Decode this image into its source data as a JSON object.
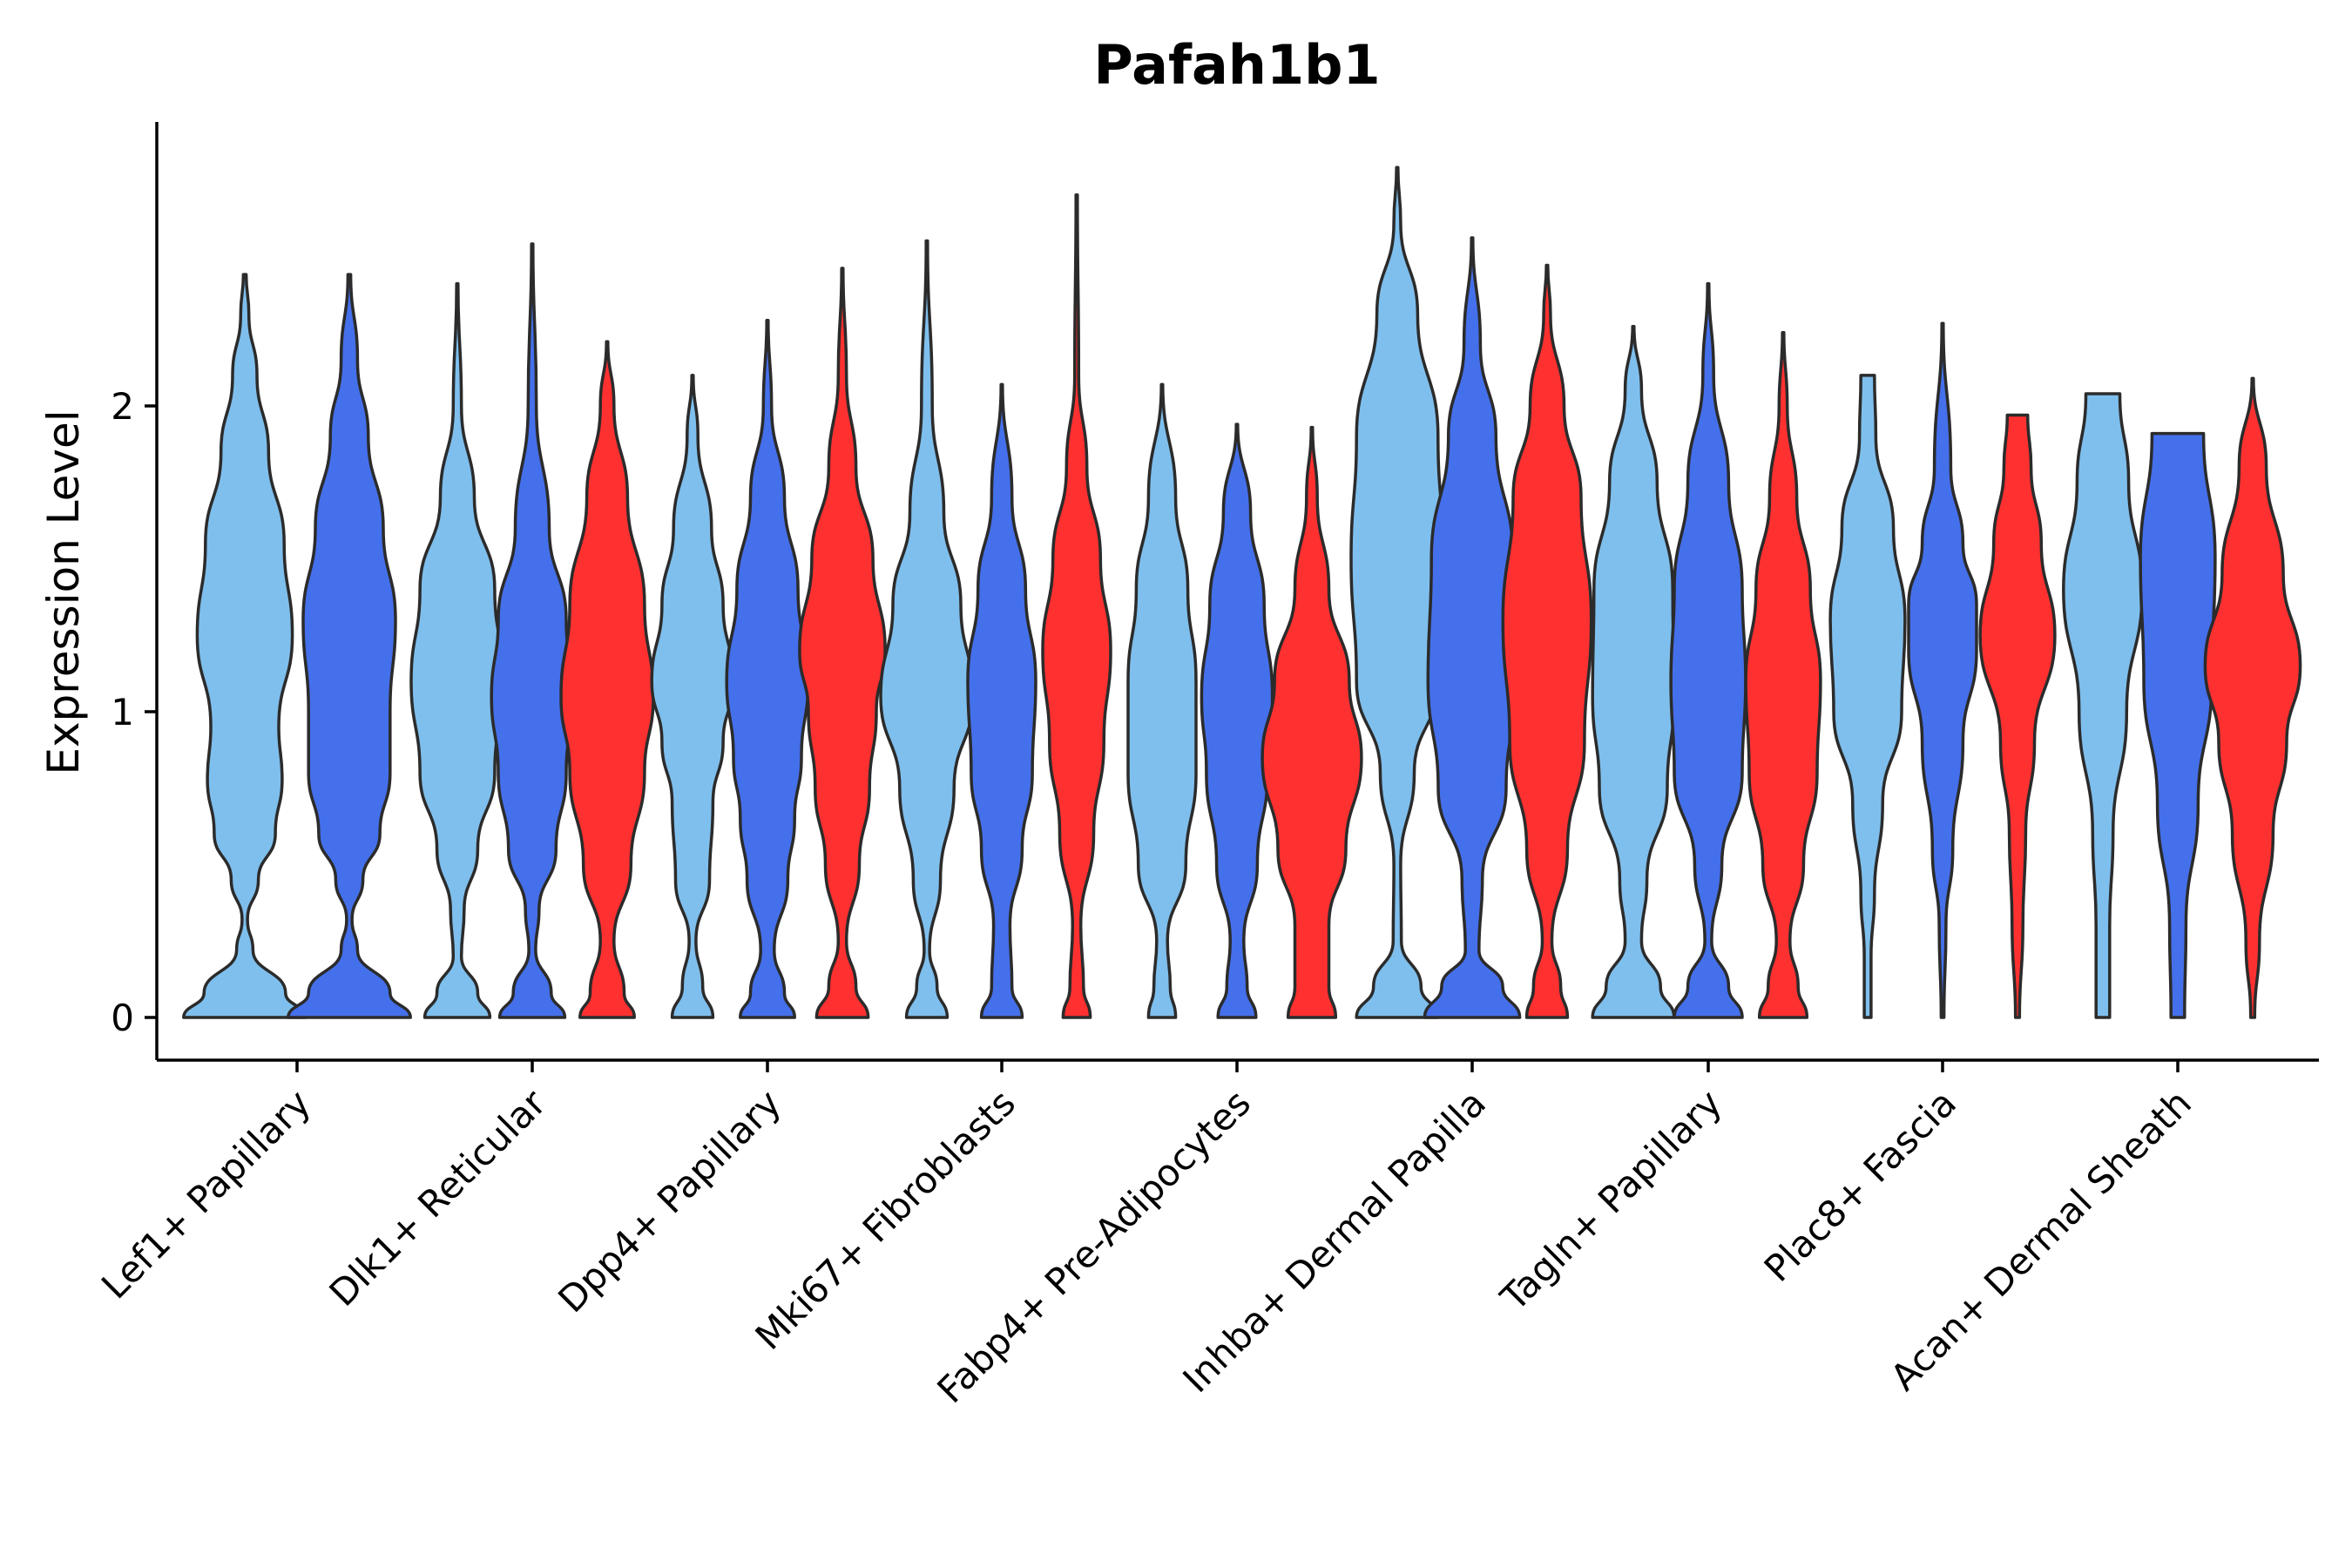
{
  "chart_data": {
    "type": "violin",
    "title": "Pafah1b1",
    "xlabel": "",
    "ylabel": "Expression Level",
    "ylim": [
      -0.14,
      2.93
    ],
    "yticks": [
      0,
      1,
      2
    ],
    "categories": [
      "Lef1+ Papillary",
      "Dlk1+ Reticular",
      "Dpp4+ Papillary",
      "Mki67+ Fibroblasts",
      "Fabp4+ Pre-Adipocytes",
      "Inhba+ Dermal Papilla",
      "Tagln+ Papillary",
      "Plac8+ Fascia",
      "Acan+ Dermal Sheath"
    ],
    "series_colors": [
      "#7fbfed",
      "#4570eb",
      "#ff3030"
    ],
    "violins": [
      {
        "category": 0,
        "color": 0,
        "max": 2.43,
        "profile": [
          [
            0,
            0.9
          ],
          [
            0.08,
            0.6
          ],
          [
            0.22,
            0.12
          ],
          [
            0.32,
            0.04
          ],
          [
            0.45,
            0.2
          ],
          [
            0.6,
            0.45
          ],
          [
            0.78,
            0.55
          ],
          [
            0.95,
            0.5
          ],
          [
            1.25,
            0.7
          ],
          [
            1.55,
            0.58
          ],
          [
            1.85,
            0.35
          ],
          [
            2.1,
            0.18
          ],
          [
            2.3,
            0.06
          ],
          [
            2.43,
            0.02
          ]
        ]
      },
      {
        "category": 0,
        "color": 1,
        "max": 2.43,
        "profile": [
          [
            0,
            0.9
          ],
          [
            0.08,
            0.6
          ],
          [
            0.22,
            0.12
          ],
          [
            0.32,
            0.04
          ],
          [
            0.45,
            0.2
          ],
          [
            0.6,
            0.45
          ],
          [
            0.8,
            0.6
          ],
          [
            1.0,
            0.6
          ],
          [
            1.3,
            0.68
          ],
          [
            1.6,
            0.5
          ],
          [
            1.9,
            0.28
          ],
          [
            2.15,
            0.12
          ],
          [
            2.43,
            0.02
          ]
        ]
      },
      {
        "category": 1,
        "color": 0,
        "max": 2.4,
        "profile": [
          [
            0,
            0.48
          ],
          [
            0.08,
            0.3
          ],
          [
            0.2,
            0.06
          ],
          [
            0.35,
            0.1
          ],
          [
            0.55,
            0.3
          ],
          [
            0.8,
            0.55
          ],
          [
            1.1,
            0.68
          ],
          [
            1.4,
            0.55
          ],
          [
            1.7,
            0.25
          ],
          [
            2.0,
            0.06
          ],
          [
            2.4,
            0.01
          ]
        ]
      },
      {
        "category": 1,
        "color": 1,
        "max": 2.53,
        "profile": [
          [
            0,
            0.48
          ],
          [
            0.08,
            0.28
          ],
          [
            0.22,
            0.05
          ],
          [
            0.35,
            0.1
          ],
          [
            0.55,
            0.35
          ],
          [
            0.8,
            0.5
          ],
          [
            1.05,
            0.6
          ],
          [
            1.3,
            0.5
          ],
          [
            1.6,
            0.25
          ],
          [
            2.0,
            0.06
          ],
          [
            2.53,
            0.01
          ]
        ]
      },
      {
        "category": 1,
        "color": 2,
        "max": 2.21,
        "profile": [
          [
            0,
            0.4
          ],
          [
            0.08,
            0.25
          ],
          [
            0.25,
            0.1
          ],
          [
            0.5,
            0.35
          ],
          [
            0.8,
            0.55
          ],
          [
            1.05,
            0.68
          ],
          [
            1.35,
            0.55
          ],
          [
            1.7,
            0.3
          ],
          [
            2.0,
            0.1
          ],
          [
            2.21,
            0.01
          ]
        ]
      },
      {
        "category": 2,
        "color": 0,
        "max": 2.1,
        "profile": [
          [
            0,
            0.3
          ],
          [
            0.1,
            0.15
          ],
          [
            0.25,
            0.05
          ],
          [
            0.45,
            0.25
          ],
          [
            0.7,
            0.3
          ],
          [
            0.9,
            0.45
          ],
          [
            1.1,
            0.6
          ],
          [
            1.35,
            0.45
          ],
          [
            1.6,
            0.28
          ],
          [
            1.9,
            0.08
          ],
          [
            2.1,
            0.01
          ]
        ]
      },
      {
        "category": 2,
        "color": 1,
        "max": 2.28,
        "profile": [
          [
            0,
            0.4
          ],
          [
            0.08,
            0.25
          ],
          [
            0.22,
            0.1
          ],
          [
            0.45,
            0.3
          ],
          [
            0.65,
            0.4
          ],
          [
            0.85,
            0.5
          ],
          [
            1.1,
            0.6
          ],
          [
            1.4,
            0.45
          ],
          [
            1.7,
            0.25
          ],
          [
            2.0,
            0.06
          ],
          [
            2.28,
            0.01
          ]
        ]
      },
      {
        "category": 2,
        "color": 2,
        "max": 2.45,
        "profile": [
          [
            0,
            0.38
          ],
          [
            0.1,
            0.2
          ],
          [
            0.25,
            0.06
          ],
          [
            0.5,
            0.25
          ],
          [
            0.75,
            0.4
          ],
          [
            1.0,
            0.5
          ],
          [
            1.2,
            0.63
          ],
          [
            1.5,
            0.45
          ],
          [
            1.8,
            0.2
          ],
          [
            2.1,
            0.06
          ],
          [
            2.45,
            0.01
          ]
        ]
      },
      {
        "category": 3,
        "color": 0,
        "max": 2.54,
        "profile": [
          [
            0,
            0.3
          ],
          [
            0.1,
            0.15
          ],
          [
            0.22,
            0.04
          ],
          [
            0.45,
            0.2
          ],
          [
            0.75,
            0.4
          ],
          [
            1.05,
            0.68
          ],
          [
            1.35,
            0.5
          ],
          [
            1.65,
            0.25
          ],
          [
            2.0,
            0.08
          ],
          [
            2.54,
            0.01
          ]
        ]
      },
      {
        "category": 3,
        "color": 1,
        "max": 2.07,
        "profile": [
          [
            0,
            0.3
          ],
          [
            0.1,
            0.15
          ],
          [
            0.3,
            0.12
          ],
          [
            0.55,
            0.3
          ],
          [
            0.8,
            0.45
          ],
          [
            1.1,
            0.5
          ],
          [
            1.4,
            0.35
          ],
          [
            1.7,
            0.15
          ],
          [
            2.07,
            0.01
          ]
        ]
      },
      {
        "category": 3,
        "color": 2,
        "max": 2.69,
        "profile": [
          [
            0,
            0.2
          ],
          [
            0.1,
            0.1
          ],
          [
            0.3,
            0.06
          ],
          [
            0.6,
            0.25
          ],
          [
            0.9,
            0.4
          ],
          [
            1.2,
            0.5
          ],
          [
            1.5,
            0.35
          ],
          [
            1.8,
            0.15
          ],
          [
            2.1,
            0.03
          ],
          [
            2.69,
            0.01
          ]
        ]
      },
      {
        "category": 4,
        "color": 0,
        "max": 2.07,
        "profile": [
          [
            0,
            0.2
          ],
          [
            0.1,
            0.12
          ],
          [
            0.25,
            0.08
          ],
          [
            0.5,
            0.35
          ],
          [
            0.8,
            0.5
          ],
          [
            1.1,
            0.5
          ],
          [
            1.4,
            0.38
          ],
          [
            1.7,
            0.2
          ],
          [
            2.07,
            0.01
          ]
        ]
      },
      {
        "category": 4,
        "color": 1,
        "max": 1.94,
        "profile": [
          [
            0,
            0.28
          ],
          [
            0.1,
            0.15
          ],
          [
            0.25,
            0.1
          ],
          [
            0.5,
            0.3
          ],
          [
            0.8,
            0.45
          ],
          [
            1.05,
            0.52
          ],
          [
            1.35,
            0.4
          ],
          [
            1.65,
            0.2
          ],
          [
            1.94,
            0.01
          ]
        ]
      },
      {
        "category": 4,
        "color": 2,
        "max": 1.93,
        "profile": [
          [
            0,
            0.35
          ],
          [
            0.1,
            0.25
          ],
          [
            0.3,
            0.25
          ],
          [
            0.55,
            0.5
          ],
          [
            0.85,
            0.73
          ],
          [
            1.1,
            0.55
          ],
          [
            1.4,
            0.25
          ],
          [
            1.7,
            0.08
          ],
          [
            1.93,
            0.01
          ]
        ]
      },
      {
        "category": 5,
        "color": 0,
        "max": 2.78,
        "profile": [
          [
            0,
            0.6
          ],
          [
            0.1,
            0.35
          ],
          [
            0.25,
            0.06
          ],
          [
            0.5,
            0.05
          ],
          [
            0.8,
            0.25
          ],
          [
            1.1,
            0.6
          ],
          [
            1.5,
            0.68
          ],
          [
            1.9,
            0.6
          ],
          [
            2.3,
            0.3
          ],
          [
            2.6,
            0.05
          ],
          [
            2.78,
            0.01
          ]
        ]
      },
      {
        "category": 5,
        "color": 1,
        "max": 2.55,
        "profile": [
          [
            0,
            0.7
          ],
          [
            0.1,
            0.45
          ],
          [
            0.22,
            0.1
          ],
          [
            0.45,
            0.15
          ],
          [
            0.75,
            0.5
          ],
          [
            1.1,
            0.65
          ],
          [
            1.5,
            0.6
          ],
          [
            1.9,
            0.35
          ],
          [
            2.2,
            0.12
          ],
          [
            2.55,
            0.01
          ]
        ]
      },
      {
        "category": 5,
        "color": 2,
        "max": 2.46,
        "profile": [
          [
            0,
            0.3
          ],
          [
            0.1,
            0.2
          ],
          [
            0.25,
            0.07
          ],
          [
            0.55,
            0.3
          ],
          [
            0.9,
            0.55
          ],
          [
            1.3,
            0.65
          ],
          [
            1.7,
            0.5
          ],
          [
            2.0,
            0.25
          ],
          [
            2.3,
            0.05
          ],
          [
            2.46,
            0.01
          ]
        ]
      },
      {
        "category": 6,
        "color": 0,
        "max": 2.26,
        "profile": [
          [
            0,
            0.6
          ],
          [
            0.1,
            0.4
          ],
          [
            0.25,
            0.12
          ],
          [
            0.45,
            0.2
          ],
          [
            0.75,
            0.5
          ],
          [
            1.05,
            0.6
          ],
          [
            1.4,
            0.58
          ],
          [
            1.75,
            0.35
          ],
          [
            2.05,
            0.12
          ],
          [
            2.26,
            0.01
          ]
        ]
      },
      {
        "category": 6,
        "color": 1,
        "max": 2.4,
        "profile": [
          [
            0,
            0.5
          ],
          [
            0.1,
            0.3
          ],
          [
            0.25,
            0.05
          ],
          [
            0.5,
            0.2
          ],
          [
            0.8,
            0.5
          ],
          [
            1.1,
            0.55
          ],
          [
            1.4,
            0.5
          ],
          [
            1.75,
            0.3
          ],
          [
            2.1,
            0.08
          ],
          [
            2.4,
            0.01
          ]
        ]
      },
      {
        "category": 6,
        "color": 2,
        "max": 2.24,
        "profile": [
          [
            0,
            0.35
          ],
          [
            0.1,
            0.22
          ],
          [
            0.25,
            0.1
          ],
          [
            0.5,
            0.3
          ],
          [
            0.8,
            0.5
          ],
          [
            1.1,
            0.55
          ],
          [
            1.4,
            0.4
          ],
          [
            1.7,
            0.2
          ],
          [
            2.0,
            0.06
          ],
          [
            2.24,
            0.01
          ]
        ]
      },
      {
        "category": 7,
        "color": 0,
        "max": 2.1,
        "profile": [
          [
            0,
            0.05
          ],
          [
            0.2,
            0.05
          ],
          [
            0.4,
            0.1
          ],
          [
            0.7,
            0.22
          ],
          [
            1.0,
            0.5
          ],
          [
            1.3,
            0.55
          ],
          [
            1.6,
            0.38
          ],
          [
            1.9,
            0.12
          ],
          [
            2.1,
            0.1
          ]
        ]
      },
      {
        "category": 7,
        "color": 1,
        "max": 2.27,
        "profile": [
          [
            0,
            0.02
          ],
          [
            0.3,
            0.05
          ],
          [
            0.55,
            0.15
          ],
          [
            0.9,
            0.3
          ],
          [
            1.2,
            0.5
          ],
          [
            1.35,
            0.5
          ],
          [
            1.55,
            0.3
          ],
          [
            1.8,
            0.12
          ],
          [
            2.27,
            0.01
          ]
        ]
      },
      {
        "category": 7,
        "color": 2,
        "max": 1.97,
        "profile": [
          [
            0,
            0.03
          ],
          [
            0.3,
            0.08
          ],
          [
            0.6,
            0.12
          ],
          [
            0.9,
            0.25
          ],
          [
            1.25,
            0.55
          ],
          [
            1.55,
            0.35
          ],
          [
            1.8,
            0.2
          ],
          [
            1.97,
            0.15
          ]
        ]
      },
      {
        "category": 8,
        "color": 0,
        "max": 2.04,
        "profile": [
          [
            0,
            0.1
          ],
          [
            0.3,
            0.1
          ],
          [
            0.6,
            0.15
          ],
          [
            1.0,
            0.35
          ],
          [
            1.4,
            0.58
          ],
          [
            1.75,
            0.38
          ],
          [
            2.04,
            0.25
          ]
        ]
      },
      {
        "category": 8,
        "color": 1,
        "max": 1.91,
        "profile": [
          [
            0,
            0.1
          ],
          [
            0.3,
            0.12
          ],
          [
            0.7,
            0.3
          ],
          [
            1.1,
            0.5
          ],
          [
            1.5,
            0.55
          ],
          [
            1.91,
            0.38
          ]
        ]
      },
      {
        "category": 8,
        "color": 2,
        "max": 2.09,
        "profile": [
          [
            0,
            0.03
          ],
          [
            0.25,
            0.1
          ],
          [
            0.6,
            0.3
          ],
          [
            0.9,
            0.5
          ],
          [
            1.15,
            0.7
          ],
          [
            1.45,
            0.45
          ],
          [
            1.8,
            0.2
          ],
          [
            2.09,
            0.01
          ]
        ]
      }
    ]
  }
}
